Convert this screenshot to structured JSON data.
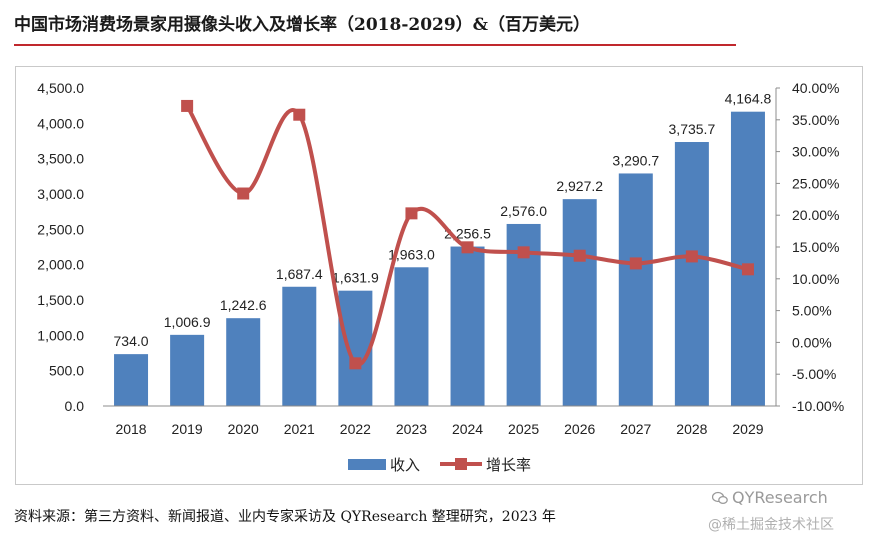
{
  "title": "中国市场消费场景家用摄像头收入及增长率（2018-2029）&（百万美元）",
  "source": "资料来源：第三方资料、新闻报道、业内专家采访及 QYResearch 整理研究，2023 年",
  "watermark": {
    "brand": "QYResearch",
    "site": "@稀土掘金技术社区"
  },
  "colors": {
    "bar": "#4f81bd",
    "line": "#c0504d",
    "rule": "#c0282d"
  },
  "chart_data": {
    "type": "bar",
    "categories": [
      "2018",
      "2019",
      "2020",
      "2021",
      "2022",
      "2023",
      "2024",
      "2025",
      "2026",
      "2027",
      "2028",
      "2029"
    ],
    "series": [
      {
        "name": "收入",
        "type": "bar",
        "axis": "left",
        "values": [
          734.0,
          1006.9,
          1242.6,
          1687.4,
          1631.9,
          1963.0,
          2256.5,
          2576.0,
          2927.2,
          3290.7,
          3735.7,
          4164.8
        ],
        "labels": [
          "734.0",
          "1,006.9",
          "1,242.6",
          "1,687.4",
          "1,631.9",
          "1,963.0",
          "2,256.5",
          "2,576.0",
          "2,927.2",
          "3,290.7",
          "3,735.7",
          "4,164.8"
        ]
      },
      {
        "name": "增长率",
        "type": "line",
        "axis": "right",
        "values": [
          null,
          37.18,
          23.41,
          35.8,
          -3.29,
          20.29,
          14.95,
          14.16,
          13.63,
          12.42,
          13.52,
          11.49
        ]
      }
    ],
    "y_left": {
      "min": 0,
      "max": 4500,
      "step": 500,
      "ticks": [
        "0.0",
        "500.0",
        "1,000.0",
        "1,500.0",
        "2,000.0",
        "2,500.0",
        "3,000.0",
        "3,500.0",
        "4,000.0",
        "4,500.0"
      ]
    },
    "y_right": {
      "min": -10,
      "max": 40,
      "step": 5,
      "ticks": [
        "-10.00%",
        "-5.00%",
        "0.00%",
        "5.00%",
        "10.00%",
        "15.00%",
        "20.00%",
        "25.00%",
        "30.00%",
        "35.00%",
        "40.00%"
      ]
    },
    "legend": {
      "position": "bottom",
      "items": [
        "收入",
        "增长率"
      ]
    },
    "grid": false
  }
}
